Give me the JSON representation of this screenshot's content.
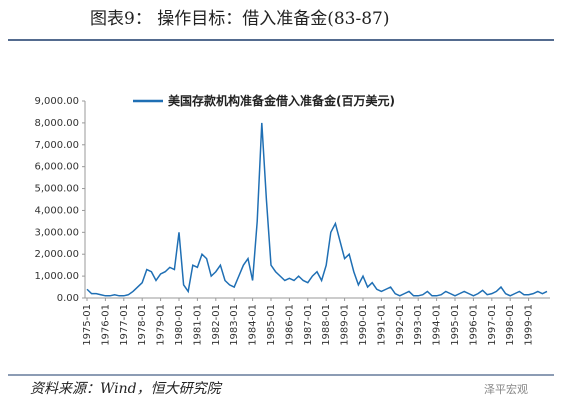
{
  "title": "图表9： 操作目标：借入准备金(83-87)",
  "source": "资料来源：Wind，恒大研究院",
  "watermark": "泽平宏观",
  "chart_data": {
    "type": "line",
    "series": [
      {
        "name": "美国存款机构准备金借入准备金(百万美元)",
        "color": "#1f6fb4",
        "values": [
          400,
          200,
          200,
          150,
          100,
          100,
          150,
          100,
          100,
          150,
          300,
          500,
          700,
          1300,
          1200,
          800,
          1100,
          1200,
          1400,
          1300,
          3000,
          600,
          300,
          1500,
          1400,
          2000,
          1800,
          1000,
          1200,
          1500,
          800,
          600,
          500,
          1000,
          1500,
          1800,
          800,
          3500,
          8000,
          4500,
          1500,
          1200,
          1000,
          800,
          900,
          800,
          1000,
          800,
          700,
          1000,
          1200,
          800,
          1500,
          3000,
          3400,
          2600,
          1800,
          2000,
          1200,
          600,
          1000,
          500,
          700,
          400,
          300,
          400,
          500,
          200,
          100,
          200,
          300,
          100,
          100,
          150,
          300,
          100,
          100,
          150,
          300,
          200,
          100,
          200,
          300,
          200,
          100,
          200,
          350,
          150,
          200,
          300,
          500,
          200,
          100,
          200,
          300,
          150,
          150,
          200,
          300,
          200,
          300
        ]
      }
    ],
    "x": [
      "1975-01",
      "1975-04",
      "1975-07",
      "1975-10",
      "1976-01",
      "1976-04",
      "1976-07",
      "1976-10",
      "1977-01",
      "1977-04",
      "1977-07",
      "1977-10",
      "1978-01",
      "1978-04",
      "1978-07",
      "1978-10",
      "1979-01",
      "1979-04",
      "1979-07",
      "1979-10",
      "1980-01",
      "1980-04",
      "1980-07",
      "1980-10",
      "1981-01",
      "1981-04",
      "1981-07",
      "1981-10",
      "1982-01",
      "1982-04",
      "1982-07",
      "1982-10",
      "1983-01",
      "1983-04",
      "1983-07",
      "1983-10",
      "1984-01",
      "1984-04",
      "1984-07",
      "1984-10",
      "1985-01",
      "1985-04",
      "1985-07",
      "1985-10",
      "1986-01",
      "1986-04",
      "1986-07",
      "1986-10",
      "1987-01",
      "1987-04",
      "1987-07",
      "1987-10",
      "1988-01",
      "1988-04",
      "1988-07",
      "1988-10",
      "1989-01",
      "1989-04",
      "1989-07",
      "1989-10",
      "1990-01",
      "1990-04",
      "1990-07",
      "1990-10",
      "1991-01",
      "1991-04",
      "1991-07",
      "1991-10",
      "1992-01",
      "1992-04",
      "1992-07",
      "1992-10",
      "1993-01",
      "1993-04",
      "1993-07",
      "1993-10",
      "1994-01",
      "1994-04",
      "1994-07",
      "1994-10",
      "1995-01",
      "1995-04",
      "1995-07",
      "1995-10",
      "1996-01",
      "1996-04",
      "1996-07",
      "1996-10",
      "1997-01",
      "1997-04",
      "1997-07",
      "1997-10",
      "1998-01",
      "1998-04",
      "1998-07",
      "1998-10",
      "1999-01",
      "1999-04",
      "1999-07",
      "1999-10",
      "2000-01"
    ],
    "xticks": [
      "1975-01",
      "1976-01",
      "1977-01",
      "1978-01",
      "1979-01",
      "1980-01",
      "1981-01",
      "1982-01",
      "1983-01",
      "1984-01",
      "1985-01",
      "1986-01",
      "1987-01",
      "1988-01",
      "1989-01",
      "1990-01",
      "1991-01",
      "1992-01",
      "1993-01",
      "1994-01",
      "1995-01",
      "1996-01",
      "1997-01",
      "1998-01",
      "1999-01"
    ],
    "ylim": [
      0,
      9000
    ],
    "yticks": [
      {
        "value": 0,
        "label": "0.00"
      },
      {
        "value": 1000,
        "label": "1,000.00"
      },
      {
        "value": 2000,
        "label": "2,000.00"
      },
      {
        "value": 3000,
        "label": "3,000.00"
      },
      {
        "value": 4000,
        "label": "4,000.00"
      },
      {
        "value": 5000,
        "label": "5,000.00"
      },
      {
        "value": 6000,
        "label": "6,000.00"
      },
      {
        "value": 7000,
        "label": "7,000.00"
      },
      {
        "value": 8000,
        "label": "8,000.00"
      },
      {
        "value": 9000,
        "label": "9,000.00"
      }
    ],
    "grid": false,
    "legend": "top"
  }
}
